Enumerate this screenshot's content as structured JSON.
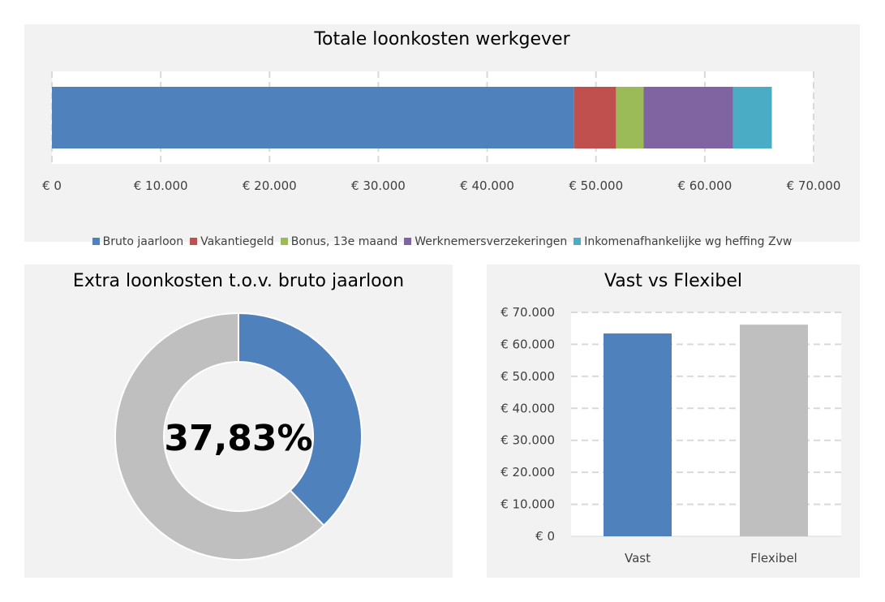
{
  "chart_data": [
    {
      "type": "bar",
      "orientation": "horizontal",
      "stacked": true,
      "title": "Totale loonkosten werkgever",
      "xlim": [
        0,
        70000
      ],
      "ticks": [
        "€ 0",
        "€ 10.000",
        "€ 20.000",
        "€ 30.000",
        "€ 40.000",
        "€ 50.000",
        "€ 60.000",
        "€ 70.000"
      ],
      "grid": true,
      "legend": "bottom",
      "series": [
        {
          "name": "Bruto jaarloon",
          "value": 48000,
          "color": "#4f81bd"
        },
        {
          "name": "Vakantiegeld",
          "value": 3840,
          "color": "#c0504d"
        },
        {
          "name": "Bonus, 13e maand",
          "value": 2540,
          "color": "#9bbb59"
        },
        {
          "name": "Werknemersverzekeringen",
          "value": 8200,
          "color": "#8064a2"
        },
        {
          "name": "Inkomenafhankelijke wg heffing Zvw",
          "value": 3580,
          "color": "#4bacc6"
        }
      ]
    },
    {
      "type": "pie",
      "donut": true,
      "title": "Extra loonkosten t.o.v. bruto jaarloon",
      "center_label": "37,83%",
      "values": [
        37.83,
        62.17
      ],
      "colors": [
        "#4f81bd",
        "#bfbfbf"
      ]
    },
    {
      "type": "bar",
      "title": "Vast vs Flexibel",
      "categories": [
        "Vast",
        "Flexibel"
      ],
      "values": [
        63400,
        66160
      ],
      "colors": [
        "#4f81bd",
        "#bfbfbf"
      ],
      "ylim": [
        0,
        70000
      ],
      "grid": true,
      "ticks": [
        "€ 0",
        "€ 10.000",
        "€ 20.000",
        "€ 30.000",
        "€ 40.000",
        "€ 50.000",
        "€ 60.000",
        "€ 70.000"
      ]
    }
  ]
}
